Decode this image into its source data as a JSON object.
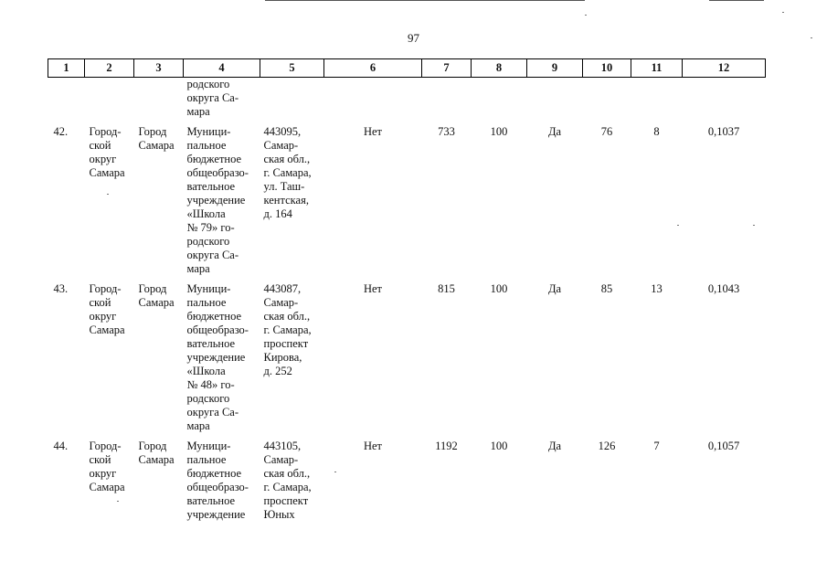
{
  "page_number": "97",
  "header": [
    "1",
    "2",
    "3",
    "4",
    "5",
    "6",
    "7",
    "8",
    "9",
    "10",
    "11",
    "12"
  ],
  "continuation": {
    "name_lines": [
      "родского",
      "округа Са-",
      "мара"
    ]
  },
  "rows": [
    {
      "num": "42.",
      "district_lines": [
        "Город-",
        "ской",
        "округ",
        "Самара"
      ],
      "city_lines": [
        "Город",
        "Самара"
      ],
      "name_lines": [
        "Муници-",
        "пальное",
        "бюджетное",
        "общеобразо-",
        "вательное",
        "учреждение",
        "«Школа",
        "№ 79» го-",
        "родского",
        "округа Са-",
        "мара"
      ],
      "address_lines": [
        "443095,",
        "Самар-",
        "ская обл.,",
        "г. Самара,",
        "ул. Таш-",
        "кентская,",
        "д. 164"
      ],
      "c6": "Нет",
      "c7": "733",
      "c8": "100",
      "c9": "Да",
      "c10": "76",
      "c11": "8",
      "c12": "0,1037"
    },
    {
      "num": "43.",
      "district_lines": [
        "Город-",
        "ской",
        "округ",
        "Самара"
      ],
      "city_lines": [
        "Город",
        "Самара"
      ],
      "name_lines": [
        "Муници-",
        "пальное",
        "бюджетное",
        "общеобразо-",
        "вательное",
        "учреждение",
        "«Школа",
        "№ 48» го-",
        "родского",
        "округа Са-",
        "мара"
      ],
      "address_lines": [
        "443087,",
        "Самар-",
        "ская обл.,",
        "г. Самара,",
        "проспект",
        "Кирова,",
        "д. 252"
      ],
      "c6": "Нет",
      "c7": "815",
      "c8": "100",
      "c9": "Да",
      "c10": "85",
      "c11": "13",
      "c12": "0,1043"
    },
    {
      "num": "44.",
      "district_lines": [
        "Город-",
        "ской",
        "округ",
        "Самара"
      ],
      "city_lines": [
        "Город",
        "Самара"
      ],
      "name_lines": [
        "Муници-",
        "пальное",
        "бюджетное",
        "общеобразо-",
        "вательное",
        "учреждение"
      ],
      "address_lines": [
        "443105,",
        "Самар-",
        "ская обл.,",
        "г. Самара,",
        "проспект",
        "Юных"
      ],
      "c6": "Нет",
      "c7": "1192",
      "c8": "100",
      "c9": "Да",
      "c10": "126",
      "c11": "7",
      "c12": "0,1057"
    }
  ]
}
